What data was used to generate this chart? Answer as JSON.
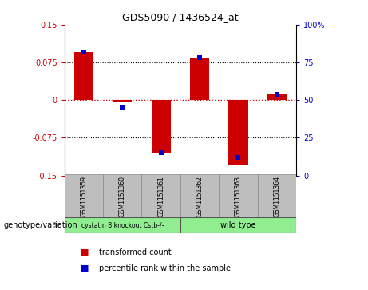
{
  "title": "GDS5090 / 1436524_at",
  "samples": [
    "GSM1151359",
    "GSM1151360",
    "GSM1151361",
    "GSM1151362",
    "GSM1151363",
    "GSM1151364"
  ],
  "red_values": [
    0.095,
    -0.005,
    -0.105,
    0.083,
    -0.128,
    0.012
  ],
  "blue_percentiles": [
    82,
    45,
    15,
    78,
    12,
    54
  ],
  "ylim": [
    -0.15,
    0.15
  ],
  "y_left_ticks": [
    -0.15,
    -0.075,
    0,
    0.075,
    0.15
  ],
  "y_right_ticks": [
    0,
    25,
    50,
    75,
    100
  ],
  "group1_label": "cystatin B knockout Cstb-/-",
  "group2_label": "wild type",
  "group_bg_color": "#90EE90",
  "sample_bg_color": "#BEBEBE",
  "bar_color": "#CC0000",
  "dot_color": "#0000CC",
  "legend_label_red": "transformed count",
  "legend_label_blue": "percentile rank within the sample",
  "xlabel_left": "genotype/variation",
  "left_axis_color": "#CC0000",
  "right_axis_color": "#0000CC",
  "zero_line_color": "#CC0000",
  "grid_line_color": "#000000"
}
